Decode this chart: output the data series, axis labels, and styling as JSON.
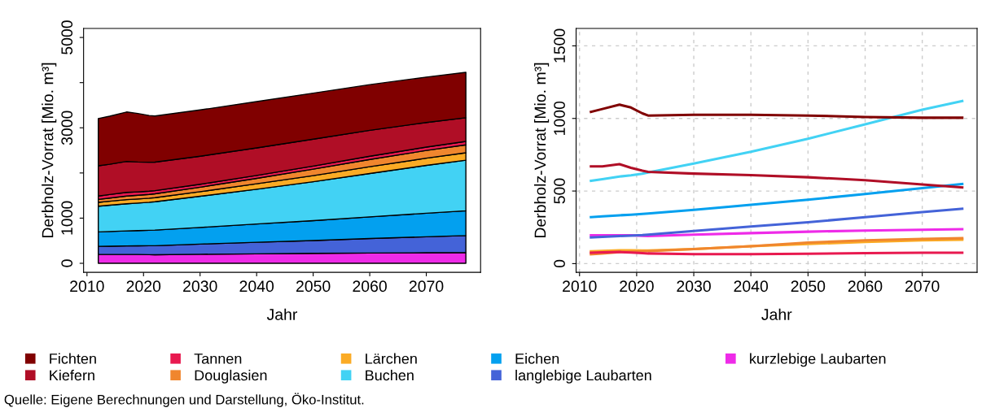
{
  "chart_data": [
    {
      "type": "area",
      "stacked": true,
      "xlabel": "Jahr",
      "ylabel": "Derbholz-Vorrat [Mio. m³]",
      "x": [
        2012,
        2014,
        2017,
        2019,
        2021,
        2022,
        2030,
        2040,
        2050,
        2060,
        2070,
        2077
      ],
      "xlim": [
        2009.4,
        2079.6
      ],
      "xticks": [
        2010,
        2020,
        2030,
        2040,
        2050,
        2060,
        2070
      ],
      "ylim": [
        -200,
        5200
      ],
      "yticks": [
        0,
        1000,
        {
          "value": 2000,
          "label": null
        },
        3000,
        {
          "value": 4000,
          "label": null
        },
        5000
      ],
      "grid": false,
      "legend": "bottom",
      "series": [
        {
          "name": "kurzlebige Laubarten",
          "color": "#ee2be8",
          "values": [
            195,
            195,
            195,
            195,
            192,
            190,
            200,
            210,
            220,
            228,
            233,
            237
          ]
        },
        {
          "name": "langlebige Laubarten",
          "color": "#4463d8",
          "values": [
            180,
            184,
            190,
            193,
            197,
            200,
            225,
            255,
            285,
            320,
            355,
            378
          ]
        },
        {
          "name": "Eichen",
          "color": "#03a0ef",
          "values": [
            320,
            325,
            333,
            337,
            342,
            345,
            370,
            405,
            440,
            480,
            520,
            548
          ]
        },
        {
          "name": "Buchen",
          "color": "#42d2f4",
          "values": [
            570,
            582,
            600,
            608,
            620,
            628,
            690,
            770,
            860,
            960,
            1060,
            1120
          ]
        },
        {
          "name": "Lärchen",
          "color": "#fbab25",
          "values": [
            85,
            88,
            92,
            91,
            90,
            90,
            100,
            120,
            135,
            150,
            160,
            165
          ]
        },
        {
          "name": "Douglasien",
          "color": "#f0862e",
          "values": [
            65,
            70,
            80,
            82,
            85,
            86,
            100,
            120,
            145,
            160,
            170,
            175
          ]
        },
        {
          "name": "Tannen",
          "color": "#e8194f",
          "values": [
            75,
            78,
            80,
            76,
            72,
            70,
            65,
            65,
            68,
            72,
            75,
            75
          ]
        },
        {
          "name": "Kiefern",
          "color": "#b00e26",
          "values": [
            670,
            670,
            685,
            660,
            640,
            632,
            620,
            610,
            595,
            575,
            545,
            525
          ]
        },
        {
          "name": "Fichten",
          "color": "#800000",
          "values": [
            1045,
            1065,
            1095,
            1075,
            1035,
            1020,
            1025,
            1025,
            1020,
            1010,
            1005,
            1005
          ]
        }
      ]
    },
    {
      "type": "line",
      "xlabel": "Jahr",
      "ylabel": "Derbholz-Vorrat [Mio. m³]",
      "x": [
        2012,
        2014,
        2017,
        2019,
        2021,
        2022,
        2030,
        2040,
        2050,
        2060,
        2070,
        2077
      ],
      "xlim": [
        2009.4,
        2079.6
      ],
      "xticks": [
        2010,
        2020,
        2030,
        2040,
        2050,
        2060,
        2070
      ],
      "ylim": [
        -60,
        1620
      ],
      "yticks": [
        0,
        500,
        1000,
        1500
      ],
      "grid": true,
      "legend": "bottom",
      "line_style": "solid",
      "marker": "none",
      "annotations": [
        "Quelle: Eigene Berechnungen und Darstellung, Öko-Institut."
      ],
      "series": [
        {
          "name": "Fichten",
          "color": "#800000",
          "values": [
            1045,
            1065,
            1095,
            1075,
            1035,
            1020,
            1025,
            1025,
            1020,
            1010,
            1005,
            1005
          ]
        },
        {
          "name": "Kiefern",
          "color": "#b00e26",
          "values": [
            670,
            670,
            685,
            660,
            640,
            632,
            620,
            610,
            595,
            575,
            545,
            525
          ]
        },
        {
          "name": "Tannen",
          "color": "#e8194f",
          "values": [
            75,
            78,
            80,
            76,
            72,
            70,
            65,
            65,
            68,
            72,
            75,
            75
          ]
        },
        {
          "name": "Douglasien",
          "color": "#f0862e",
          "values": [
            65,
            70,
            80,
            82,
            85,
            86,
            100,
            120,
            145,
            160,
            170,
            175
          ]
        },
        {
          "name": "Lärchen",
          "color": "#fbab25",
          "values": [
            85,
            88,
            92,
            91,
            90,
            90,
            100,
            120,
            135,
            150,
            160,
            165
          ]
        },
        {
          "name": "Buchen",
          "color": "#42d2f4",
          "values": [
            570,
            582,
            600,
            608,
            620,
            628,
            690,
            770,
            860,
            960,
            1060,
            1120
          ]
        },
        {
          "name": "Eichen",
          "color": "#03a0ef",
          "values": [
            320,
            325,
            333,
            337,
            342,
            345,
            370,
            405,
            440,
            480,
            520,
            548
          ]
        },
        {
          "name": "langlebige Laubarten",
          "color": "#4463d8",
          "values": [
            180,
            184,
            190,
            193,
            197,
            200,
            225,
            255,
            285,
            320,
            355,
            378
          ]
        },
        {
          "name": "kurzlebige Laubarten",
          "color": "#ee2be8",
          "values": [
            195,
            195,
            195,
            195,
            192,
            190,
            200,
            210,
            220,
            228,
            233,
            237
          ]
        }
      ]
    }
  ]
}
